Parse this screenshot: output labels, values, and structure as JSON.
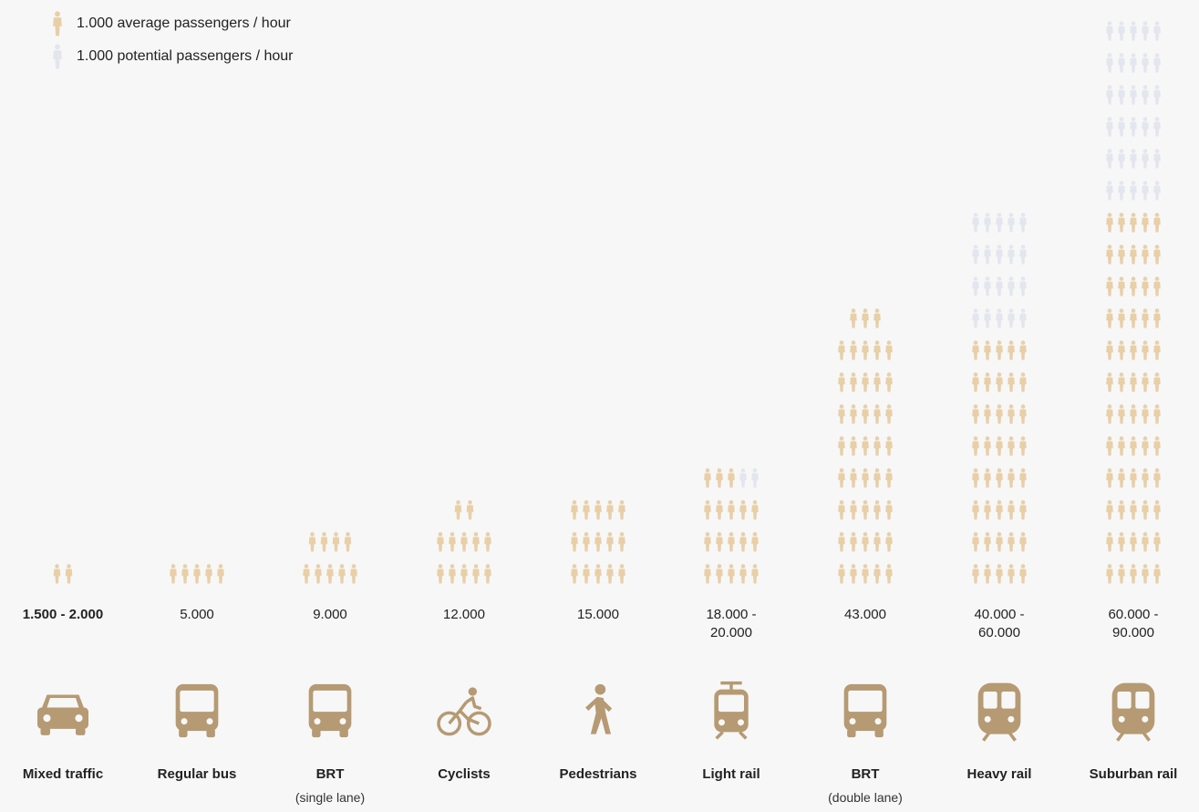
{
  "legend": [
    {
      "label": "1.000 average passengers / hour",
      "color": "#e8cfa8"
    },
    {
      "label": "1.000 potential passengers / hour",
      "color": "#e3e6ee"
    }
  ],
  "colors": {
    "average": "#e8cfa8",
    "potential": "#e3e6ee",
    "icon": "#b59a73"
  },
  "chart_data": {
    "type": "pictogram",
    "unit": "1.000 passengers / hour",
    "categories": [
      {
        "name": "Mixed traffic",
        "sub": "",
        "value_label": "1.500 - 2.000",
        "label_bold": true,
        "average": 2,
        "potential": 0,
        "icon": "car-icon"
      },
      {
        "name": "Regular bus",
        "sub": "",
        "value_label": "5.000",
        "label_bold": false,
        "average": 5,
        "potential": 0,
        "icon": "bus-icon"
      },
      {
        "name": "BRT",
        "sub": "(single lane)",
        "value_label": "9.000",
        "label_bold": false,
        "average": 9,
        "potential": 0,
        "icon": "bus-icon"
      },
      {
        "name": "Cyclists",
        "sub": "",
        "value_label": "12.000",
        "label_bold": false,
        "average": 12,
        "potential": 0,
        "icon": "bicycle-icon"
      },
      {
        "name": "Pedestrians",
        "sub": "",
        "value_label": "15.000",
        "label_bold": false,
        "average": 15,
        "potential": 0,
        "icon": "pedestrian-icon"
      },
      {
        "name": "Light rail",
        "sub": "",
        "value_label": "18.000 -\n20.000",
        "label_bold": false,
        "average": 18,
        "potential": 2,
        "icon": "tram-icon"
      },
      {
        "name": "BRT",
        "sub": "(double lane)",
        "value_label": "43.000",
        "label_bold": false,
        "average": 43,
        "potential": 0,
        "icon": "bus-icon"
      },
      {
        "name": "Heavy rail",
        "sub": "",
        "value_label": "40.000 -\n60.000",
        "label_bold": false,
        "average": 40,
        "potential": 20,
        "icon": "train-icon"
      },
      {
        "name": "Suburban rail",
        "sub": "",
        "value_label": "60.000 -\n90.000",
        "label_bold": false,
        "average": 60,
        "potential": 30,
        "icon": "train-icon"
      }
    ]
  }
}
